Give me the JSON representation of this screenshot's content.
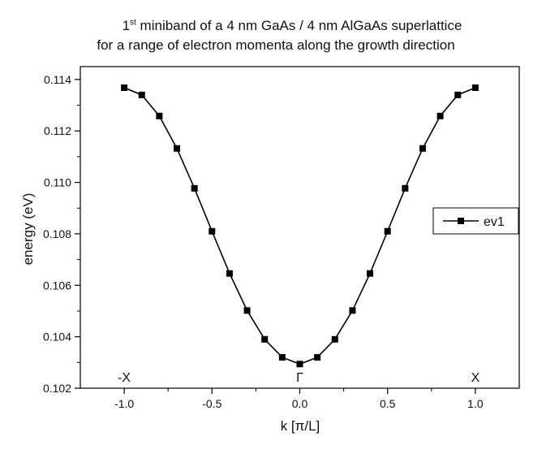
{
  "chart_data": {
    "type": "line",
    "title_line1_sup": "st",
    "title_line1_prefix": "1",
    "title_line1_rest": " miniband of a 4 nm GaAs / 4 nm AlGaAs superlattice",
    "title_line2": "for a range of electron momenta along the growth direction",
    "xlabel": "k  [π/L]",
    "ylabel": "energy (eV)",
    "xlim": [
      -1.25,
      1.25
    ],
    "ylim": [
      0.102,
      0.1145
    ],
    "xticks": [
      -1.0,
      -0.5,
      0.0,
      0.5,
      1.0
    ],
    "xtick_labels": [
      "-1.0",
      "-0.5",
      "0.0",
      "0.5",
      "1.0"
    ],
    "yticks": [
      0.102,
      0.104,
      0.106,
      0.108,
      0.11,
      0.112,
      0.114
    ],
    "ytick_labels": [
      "0.102",
      "0.104",
      "0.106",
      "0.108",
      "0.110",
      "0.112",
      "0.114"
    ],
    "legend_position": "right",
    "annotations": [
      {
        "text": "-X",
        "x": -1.0
      },
      {
        "text": "Γ",
        "x": 0.0
      },
      {
        "text": "X",
        "x": 1.0
      }
    ],
    "series": [
      {
        "name": "ev1",
        "marker": "square",
        "color": "#000000",
        "x": [
          -1.0,
          -0.9,
          -0.8,
          -0.7,
          -0.6,
          -0.5,
          -0.4,
          -0.3,
          -0.2,
          -0.1,
          0.0,
          0.1,
          0.2,
          0.3,
          0.4,
          0.5,
          0.6,
          0.7,
          0.8,
          0.9,
          1.0
        ],
        "y": [
          0.11368,
          0.1134,
          0.11258,
          0.11132,
          0.10977,
          0.1081,
          0.10646,
          0.10502,
          0.1039,
          0.1032,
          0.10294,
          0.1032,
          0.1039,
          0.10502,
          0.10646,
          0.1081,
          0.10977,
          0.11132,
          0.11258,
          0.1134,
          0.11368
        ]
      }
    ]
  }
}
